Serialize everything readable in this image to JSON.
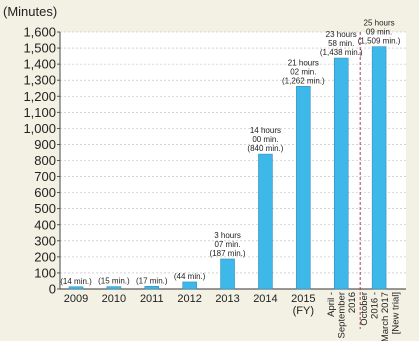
{
  "chart_data": {
    "type": "bar",
    "title": "",
    "ylabel": "(Minutes)",
    "xlabel": "",
    "ylim": [
      0,
      1600
    ],
    "yticks": [
      0,
      100,
      200,
      300,
      400,
      500,
      600,
      700,
      800,
      900,
      "1,000",
      "1,100",
      "1,200",
      "1,300",
      "1,400",
      "1,500",
      "1,600"
    ],
    "ytick_values": [
      0,
      100,
      200,
      300,
      400,
      500,
      600,
      700,
      800,
      900,
      1000,
      1100,
      1200,
      1300,
      1400,
      1500,
      1600
    ],
    "grid": true,
    "categories": [
      [
        "2009"
      ],
      [
        "2010"
      ],
      [
        "2011"
      ],
      [
        "2012"
      ],
      [
        "2013"
      ],
      [
        "2014"
      ],
      [
        "2015",
        "(FY)"
      ],
      [
        "April -",
        "September",
        "2016"
      ],
      [
        "October",
        "2016 -",
        "March 2017",
        "[New trial]"
      ]
    ],
    "values": [
      14,
      15,
      17,
      44,
      187,
      840,
      1262,
      1438,
      1509
    ],
    "data_labels": [
      [
        "(14 min.)"
      ],
      [
        "(15 min.)"
      ],
      [
        "(17 min.)"
      ],
      [
        "(44 min.)"
      ],
      [
        "3 hours",
        "07 min.",
        "(187 min.)"
      ],
      [
        "14 hours",
        "00 min.",
        "(840 min.)"
      ],
      [
        "21 hours",
        "02 min.",
        "(1,262 min.)"
      ],
      [
        "23 hours",
        "58 min.",
        "(1,438 min.)"
      ],
      [
        "25 hours",
        "09 min.",
        "(1,509 min.)"
      ]
    ],
    "colors": {
      "bar": "#3db8e9",
      "bar_edge": "#2c86b0",
      "background": "#f3f1e4",
      "plot": "#ffffff",
      "grid": "#b9b9b9",
      "divider": "#a03040"
    }
  }
}
